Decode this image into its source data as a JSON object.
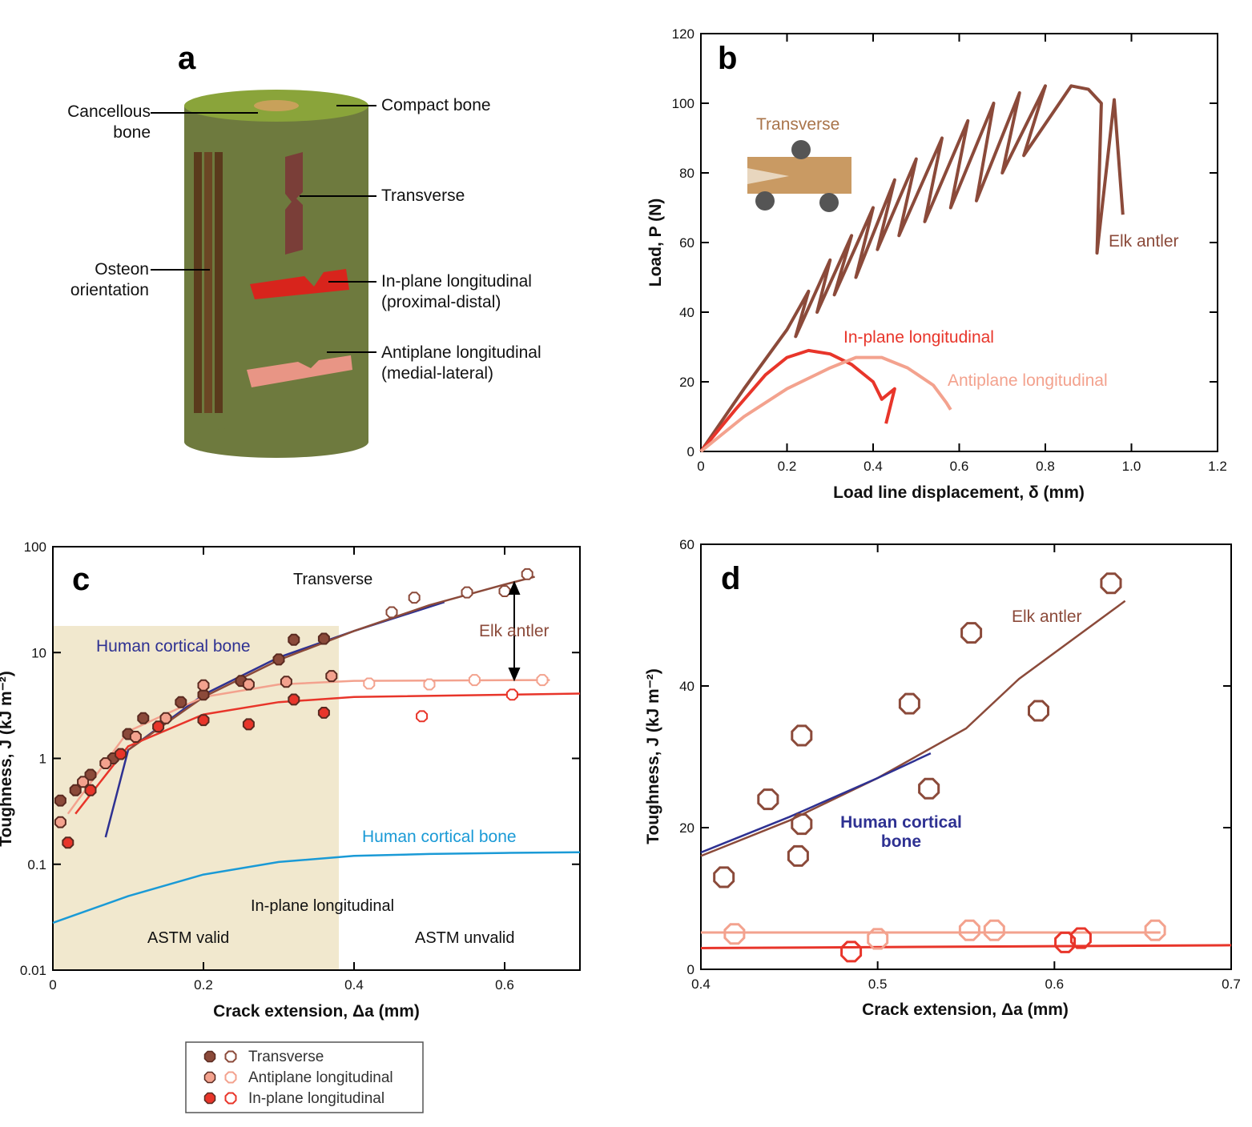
{
  "colors": {
    "elk_antler": "#8B4A3A",
    "in_plane": "#E8352A",
    "antiplane": "#F3A28E",
    "human_dark": "#2E3192",
    "human_light": "#1A9AD6",
    "astm_band": "#F1E8CE",
    "cylinder": "#6E7A3E",
    "cylinder_top": "#8AA43A"
  },
  "panel_a": {
    "letter": "a",
    "labels": {
      "cancellous_1": "Cancellous",
      "cancellous_2": "bone",
      "compact": "Compact bone",
      "transverse": "Transverse",
      "osteon_1": "Osteon",
      "osteon_2": "orientation",
      "inplane_1": "In-plane longitudinal",
      "inplane_2": "(proximal-distal)",
      "antiplane_1": "Antiplane longitudinal",
      "antiplane_2": "(medial-lateral)"
    }
  },
  "panel_b": {
    "letter": "b",
    "inset_label": "Transverse",
    "series_labels": {
      "elk": "Elk antler",
      "inplane": "In-plane longitudinal",
      "antiplane": "Antiplane longitudinal"
    },
    "xlabel": "Load line displacement, δ (mm)",
    "ylabel": "Load, P (N)",
    "xticks": [
      "0",
      "0.2",
      "0.4",
      "0.6",
      "0.8",
      "1.0",
      "1.2"
    ],
    "yticks": [
      "0",
      "20",
      "40",
      "60",
      "80",
      "100",
      "120"
    ]
  },
  "panel_c": {
    "letter": "c",
    "labels": {
      "transverse": "Transverse",
      "elk": "Elk antler",
      "human_dark": "Human cortical bone",
      "human_light": "Human cortical bone",
      "inplane": "In-plane longitudinal",
      "astm_valid": "ASTM valid",
      "astm_invalid": "ASTM unvalid"
    },
    "xlabel": "Crack extension, Δa (mm)",
    "ylabel": "Toughness, J (kJ m⁻²)",
    "xticks": [
      "0",
      "0.2",
      "0.4",
      "0.6"
    ],
    "yticks": [
      "0.01",
      "0.1",
      "1",
      "10",
      "100"
    ]
  },
  "panel_d": {
    "letter": "d",
    "labels": {
      "elk": "Elk antler",
      "human_1": "Human cortical",
      "human_2": "bone"
    },
    "xlabel": "Crack extension, Δa (mm)",
    "ylabel": "Toughness, J (kJ m⁻²)",
    "xticks": [
      "0.4",
      "0.5",
      "0.6",
      "0.7"
    ],
    "yticks": [
      "0",
      "20",
      "40",
      "60"
    ]
  },
  "legend": {
    "items": [
      "Transverse",
      "Antiplane longitudinal",
      "In-plane longitudinal"
    ]
  },
  "chart_data": [
    {
      "panel": "b",
      "type": "line",
      "title": "",
      "xlabel": "Load line displacement, δ (mm)",
      "ylabel": "Load, P (N)",
      "xlim": [
        0,
        1.2
      ],
      "ylim": [
        0,
        120
      ],
      "grid": false,
      "series": [
        {
          "name": "Elk antler",
          "x": [
            0,
            0.1,
            0.2,
            0.25,
            0.22,
            0.3,
            0.27,
            0.35,
            0.31,
            0.4,
            0.36,
            0.45,
            0.41,
            0.5,
            0.46,
            0.56,
            0.52,
            0.62,
            0.58,
            0.68,
            0.64,
            0.74,
            0.7,
            0.8,
            0.75,
            0.86,
            0.9,
            0.93,
            0.92,
            0.96,
            0.98
          ],
          "values": [
            0,
            18,
            35,
            46,
            33,
            55,
            40,
            62,
            45,
            70,
            50,
            78,
            58,
            84,
            62,
            90,
            66,
            95,
            70,
            100,
            72,
            103,
            80,
            105,
            85,
            105,
            104,
            100,
            57,
            101,
            68
          ]
        },
        {
          "name": "In-plane longitudinal",
          "x": [
            0,
            0.08,
            0.15,
            0.2,
            0.25,
            0.3,
            0.35,
            0.4,
            0.42,
            0.45,
            0.43
          ],
          "values": [
            0,
            12,
            22,
            27,
            29,
            28,
            25,
            20,
            15,
            18,
            8
          ]
        },
        {
          "name": "Antiplane longitudinal",
          "x": [
            0,
            0.1,
            0.2,
            0.3,
            0.36,
            0.42,
            0.48,
            0.54,
            0.57,
            0.58
          ],
          "values": [
            0,
            10,
            18,
            24,
            27,
            27,
            24,
            19,
            14,
            12
          ]
        }
      ]
    },
    {
      "panel": "c",
      "type": "scatter",
      "title": "",
      "xlabel": "Crack extension, Δa (mm)",
      "ylabel": "Toughness, J (kJ m⁻²)",
      "xlim": [
        0,
        0.7
      ],
      "ylim": [
        0.01,
        100
      ],
      "yscale": "log",
      "grid": false,
      "series": [
        {
          "name": "Transverse",
          "x": [
            0.01,
            0.03,
            0.05,
            0.08,
            0.1,
            0.12,
            0.17,
            0.2,
            0.25,
            0.3,
            0.32,
            0.36,
            0.45,
            0.48,
            0.55,
            0.6,
            0.63
          ],
          "values": [
            0.4,
            0.5,
            0.7,
            1.0,
            1.7,
            2.4,
            3.4,
            4.0,
            5.4,
            8.6,
            13.2,
            13.5,
            24,
            33,
            37,
            38,
            55
          ]
        },
        {
          "name": "Antiplane longitudinal",
          "x": [
            0.01,
            0.04,
            0.07,
            0.11,
            0.15,
            0.2,
            0.26,
            0.31,
            0.37,
            0.42,
            0.5,
            0.56,
            0.65
          ],
          "values": [
            0.25,
            0.6,
            0.9,
            1.6,
            2.4,
            4.9,
            5.0,
            5.3,
            6.0,
            5.1,
            5.0,
            5.5,
            5.5
          ]
        },
        {
          "name": "In-plane longitudinal",
          "x": [
            0.02,
            0.05,
            0.09,
            0.14,
            0.2,
            0.26,
            0.32,
            0.36,
            0.49,
            0.61
          ],
          "values": [
            0.16,
            0.5,
            1.1,
            2.0,
            2.3,
            2.1,
            3.6,
            2.7,
            2.5,
            4.0
          ]
        },
        {
          "name": "Human cortical bone",
          "x": [
            0.07,
            0.1,
            0.2,
            0.3,
            0.4,
            0.52
          ],
          "values": [
            0.18,
            1.2,
            4.0,
            9.0,
            16,
            30
          ]
        },
        {
          "name": "Human cortical bone",
          "x": [
            0,
            0.1,
            0.2,
            0.3,
            0.4,
            0.5,
            0.6,
            0.7
          ],
          "values": [
            0.028,
            0.05,
            0.08,
            0.105,
            0.12,
            0.125,
            0.128,
            0.13
          ]
        },
        {
          "name": "Elk antler",
          "x": [
            0.1,
            0.2,
            0.3,
            0.4,
            0.5,
            0.6,
            0.64
          ],
          "values": [
            1.2,
            3.8,
            8.5,
            16,
            28,
            44,
            52
          ]
        }
      ]
    },
    {
      "panel": "d",
      "type": "scatter",
      "title": "",
      "xlabel": "Crack extension, Δa (mm)",
      "ylabel": "Toughness, J (kJ m⁻²)",
      "xlim": [
        0.4,
        0.7
      ],
      "ylim": [
        0,
        60
      ],
      "grid": false,
      "series": [
        {
          "name": "Transverse",
          "x": [
            0.413,
            0.438,
            0.455,
            0.457,
            0.457,
            0.518,
            0.529,
            0.553,
            0.591,
            0.632
          ],
          "values": [
            13,
            24,
            16,
            20.5,
            33,
            37.5,
            25.5,
            47.5,
            36.5,
            54.5
          ]
        },
        {
          "name": "Antiplane longitudinal",
          "x": [
            0.419,
            0.5,
            0.552,
            0.566,
            0.657
          ],
          "values": [
            5.0,
            4.3,
            5.5,
            5.5,
            5.5
          ]
        },
        {
          "name": "In-plane longitudinal",
          "x": [
            0.485,
            0.606,
            0.615
          ],
          "values": [
            2.5,
            3.8,
            4.4
          ]
        },
        {
          "name": "Elk antler",
          "x": [
            0.4,
            0.45,
            0.5,
            0.55,
            0.58,
            0.64
          ],
          "values": [
            16,
            21,
            27,
            34,
            41,
            52
          ]
        },
        {
          "name": "Human cortical bone",
          "x": [
            0.4,
            0.45,
            0.5,
            0.53
          ],
          "values": [
            16.5,
            21.5,
            27,
            30.5
          ]
        }
      ]
    }
  ]
}
